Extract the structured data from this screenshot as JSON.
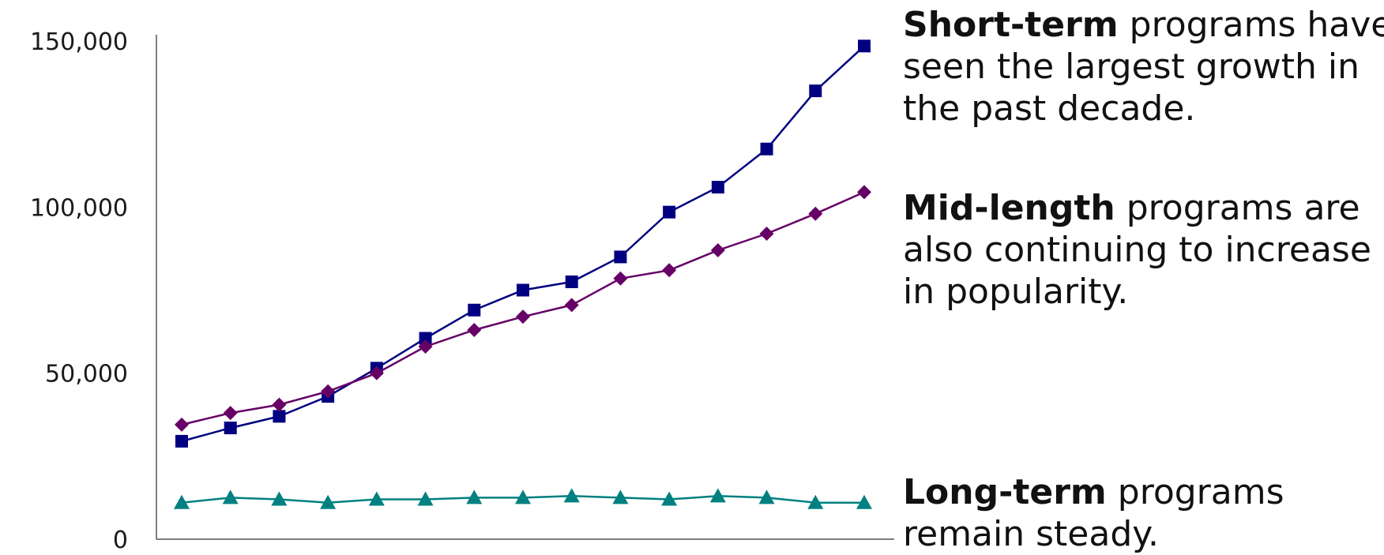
{
  "chart_data": {
    "type": "line",
    "x": [
      1,
      2,
      3,
      4,
      5,
      6,
      7,
      8,
      9,
      10,
      11,
      12,
      13,
      14,
      15
    ],
    "ylim": [
      0,
      150000
    ],
    "yticks": [
      0,
      50000,
      100000,
      150000
    ],
    "ytick_labels": [
      "0",
      "50,000",
      "100,000",
      "150,000"
    ],
    "grid": false,
    "series": [
      {
        "key": "short",
        "color": "#000080",
        "marker": "square",
        "values": [
          29500,
          33500,
          37000,
          43000,
          51500,
          60500,
          69000,
          75000,
          77500,
          85000,
          98500,
          106000,
          117500,
          135000,
          148500
        ]
      },
      {
        "key": "mid",
        "color": "#660066",
        "marker": "diamond",
        "values": [
          34500,
          38000,
          40500,
          44500,
          50000,
          58000,
          63000,
          67000,
          70500,
          78500,
          81000,
          87000,
          92000,
          98000,
          104500
        ]
      },
      {
        "key": "long",
        "color": "#008080",
        "marker": "triangle",
        "values": [
          11000,
          12500,
          12000,
          11000,
          12000,
          12000,
          12500,
          12500,
          13000,
          12500,
          12000,
          13000,
          12500,
          11000,
          11000
        ]
      }
    ]
  },
  "annotations": {
    "short": {
      "bold": "Short-term",
      "line1": " programs have",
      "line2": "seen the largest growth in",
      "line3": "the past decade."
    },
    "mid": {
      "bold": "Mid-length",
      "line1": " programs are",
      "line2": "also continuing to increase",
      "line3": "in popularity."
    },
    "long": {
      "bold": "Long-term",
      "line1": " programs",
      "line2": "remain steady."
    }
  }
}
